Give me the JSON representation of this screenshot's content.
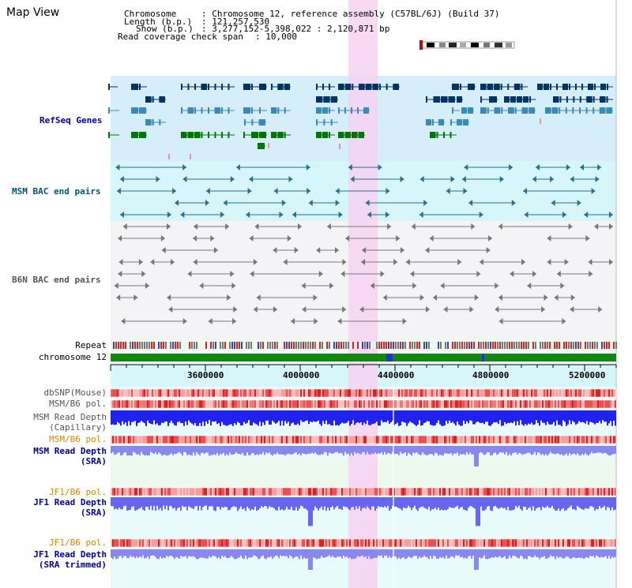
{
  "title": "Map View",
  "info": {
    "chromosome_label": "Chromosome",
    "chromosome_value": "Chromosome 12, reference assembly (C57BL/6J) (Build 37)",
    "length_label": "Length (b.p.)",
    "length_value": "121,257,530",
    "show_label": "Show (b.p.)",
    "show_value": "3,277,152-5,398,022 : 2,120,871 bp",
    "coverage_label": "Read coverage check span",
    "coverage_value": "10,000"
  },
  "tracks": {
    "refseq": "RefSeq Genes",
    "msm_bac": "MSM BAC end pairs",
    "b6n_bac": "B6N BAC end pairs",
    "repeat": "Repeat",
    "chromosome": "chromosome 12",
    "dbsnp": "dbSNP(Mouse)",
    "msm_b6_pol1": "MSM/B6 pol.",
    "msm_depth_cap_1": "MSM Read Depth",
    "msm_depth_cap_2": "(Capillary)",
    "msm_b6_pol2": "MSM/B6 pol.",
    "msm_depth_sra_1": "MSM Read Depth",
    "msm_depth_sra_2": "(SRA)",
    "jf1_b6_pol1": "JF1/B6 pol.",
    "jf1_depth_sra_1": "JF1 Read Depth",
    "jf1_depth_sra_2": "(SRA)",
    "jf1_b6_pol2": "JF1/B6 pol.",
    "jf1_depth_trim_1": "JF1 Read Depth",
    "jf1_depth_trim_2": "(SRA trimmed)"
  },
  "axis": {
    "ticks": [
      "3600000",
      "4000000",
      "4400000",
      "4800000",
      "5200000"
    ]
  },
  "colors": {
    "refseq_bg": "#d6eefa",
    "msm_bg": "#d6f6fa",
    "b6n_bg": "#f4f4f6",
    "highlight": "#f7d2f2",
    "label_blue": "#0000aa",
    "label_teal": "#005577",
    "label_gray": "#555555",
    "label_orange": "#dd8800",
    "gene_navy": "#003366",
    "gene_steel": "#3a8ab8",
    "gene_green": "#007700",
    "chrom_green": "#118811"
  }
}
